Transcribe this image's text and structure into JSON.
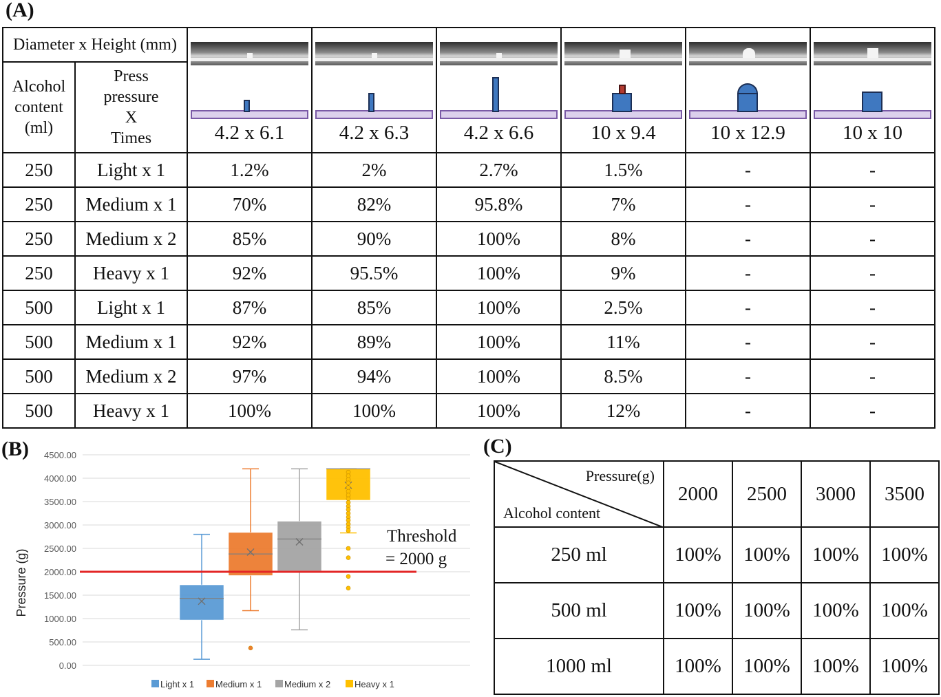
{
  "panel_a": {
    "label": "(A)",
    "header_dim": "Diameter x Height (mm)",
    "header_alcohol": [
      "Alcohol",
      "content",
      "(ml)"
    ],
    "header_press": [
      "Press",
      "pressure",
      "X",
      "Times"
    ],
    "columns": [
      "4.2 x 6.1",
      "4.2 x 6.3",
      "4.2 x 6.6",
      "10 x 9.4",
      "10 x 12.9",
      "10 x 10"
    ],
    "rows": [
      {
        "alcohol": "250",
        "press": "Light x 1",
        "values": [
          "1.2%",
          "2%",
          "2.7%",
          "1.5%",
          "-",
          "-"
        ]
      },
      {
        "alcohol": "250",
        "press": "Medium x 1",
        "values": [
          "70%",
          "82%",
          "95.8%",
          "7%",
          "-",
          "-"
        ]
      },
      {
        "alcohol": "250",
        "press": "Medium x 2",
        "values": [
          "85%",
          "90%",
          "100%",
          "8%",
          "-",
          "-"
        ]
      },
      {
        "alcohol": "250",
        "press": "Heavy x 1",
        "values": [
          "92%",
          "95.5%",
          "100%",
          "9%",
          "-",
          "-"
        ]
      },
      {
        "alcohol": "500",
        "press": "Light x 1",
        "values": [
          "87%",
          "85%",
          "100%",
          "2.5%",
          "-",
          "-"
        ]
      },
      {
        "alcohol": "500",
        "press": "Medium x 1",
        "values": [
          "92%",
          "89%",
          "100%",
          "11%",
          "-",
          "-"
        ]
      },
      {
        "alcohol": "500",
        "press": "Medium x 2",
        "values": [
          "97%",
          "94%",
          "100%",
          "8.5%",
          "-",
          "-"
        ]
      },
      {
        "alcohol": "500",
        "press": "Heavy x 1",
        "values": [
          "100%",
          "100%",
          "100%",
          "12%",
          "-",
          "-"
        ]
      }
    ]
  },
  "panel_b": {
    "label": "(B)",
    "threshold_text": [
      "Threshold",
      "= 2000 g"
    ]
  },
  "panel_c": {
    "label": "(C)",
    "corner_top": "Pressure(g)",
    "corner_bottom": "Alcohol content",
    "columns": [
      "2000",
      "2500",
      "3000",
      "3500"
    ],
    "rows": [
      {
        "label": "250 ml",
        "values": [
          "100%",
          "100%",
          "100%",
          "100%"
        ]
      },
      {
        "label": "500 ml",
        "values": [
          "100%",
          "100%",
          "100%",
          "100%"
        ]
      },
      {
        "label": "1000 ml",
        "values": [
          "100%",
          "100%",
          "100%",
          "100%"
        ]
      }
    ]
  },
  "chart_data": {
    "type": "box",
    "title": "",
    "xlabel": "",
    "ylabel": "Pressure (g)",
    "ylim": [
      0,
      4500
    ],
    "yticks": [
      "0.00",
      "500.00",
      "1000.00",
      "1500.00",
      "2000.00",
      "2500.00",
      "3000.00",
      "3500.00",
      "4000.00",
      "4500.00"
    ],
    "grid": true,
    "legend_position": "bottom",
    "threshold": 2000,
    "series": [
      {
        "name": "Light x 1",
        "color": "#5b9bd5",
        "whisker_low": 130,
        "q1": 970,
        "median": 1430,
        "mean": 1370,
        "q3": 1720,
        "whisker_high": 2800,
        "outliers": []
      },
      {
        "name": "Medium x 1",
        "color": "#ed7d31",
        "whisker_low": 1170,
        "q1": 1920,
        "median": 2380,
        "mean": 2420,
        "q3": 2840,
        "whisker_high": 4200,
        "outliers": [
          370
        ]
      },
      {
        "name": "Medium x 2",
        "color": "#a5a5a5",
        "whisker_low": 760,
        "q1": 2020,
        "median": 2700,
        "mean": 2640,
        "q3": 3080,
        "whisker_high": 4200,
        "outliers": []
      },
      {
        "name": "Heavy x 1",
        "color": "#ffc000",
        "whisker_low": 2830,
        "q1": 3530,
        "median": 4200,
        "mean": 3850,
        "q3": 4200,
        "whisker_high": 4200,
        "outliers": [
          4130,
          4050,
          3970,
          3900,
          3800,
          3720,
          3640,
          3560,
          3480,
          3400,
          3330,
          3250,
          3170,
          3100,
          3020,
          2950,
          2880,
          2500,
          2300,
          1900,
          1650
        ]
      }
    ],
    "colors": {
      "threshold_line": "#e32626",
      "axis_text": "#595959",
      "grid": "#d9d9d9"
    }
  }
}
